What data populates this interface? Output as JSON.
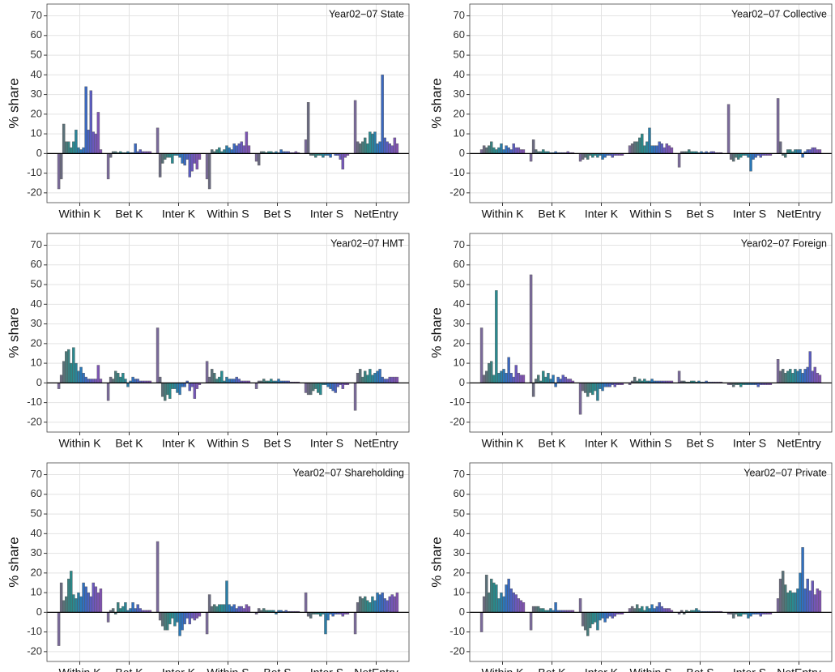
{
  "chart_data": [
    {
      "type": "bar",
      "annotation": "Year02−07 State",
      "ylabel": "% share",
      "categories": [
        "Within K",
        "Bet K",
        "Inter K",
        "Within S",
        "Bet S",
        "Inter S",
        "NetEntry"
      ],
      "values": [
        [
          -18,
          -13,
          15,
          6,
          6,
          3,
          6,
          12,
          3,
          2,
          3,
          34,
          12,
          32,
          11,
          10,
          21,
          2
        ],
        [
          -13,
          -2,
          1,
          1,
          0.5,
          1,
          0.5,
          0.5,
          1,
          0.5,
          0.5,
          5,
          1,
          2,
          1,
          1,
          1,
          1
        ],
        [
          13,
          -12,
          -5,
          -3,
          -2,
          -2,
          -5,
          -1,
          -1,
          -2,
          -5,
          -6,
          -3,
          -12,
          -9,
          -5,
          -8,
          -3
        ],
        [
          -13,
          -18,
          2,
          1,
          2,
          3,
          1,
          2,
          4,
          3,
          2,
          5,
          4,
          5,
          6,
          4,
          11,
          4
        ],
        [
          -4,
          -6,
          1,
          1,
          0.5,
          1,
          1,
          0.5,
          1,
          0.5,
          2,
          1,
          1,
          1,
          0.5,
          0.5,
          1,
          0.5
        ],
        [
          7,
          26,
          -1,
          -1,
          -2,
          -1,
          -1,
          -2,
          -1,
          -1,
          -2,
          0,
          -1,
          -1,
          -3,
          -8,
          -2,
          -1
        ],
        [
          27,
          6,
          5,
          6,
          8,
          5,
          11,
          10,
          11,
          5,
          6,
          40,
          8,
          6,
          5,
          4,
          8,
          5
        ]
      ],
      "colors": [
        "#7a6a9a",
        "#6a6a80",
        "#5a7078",
        "#4a7a7a",
        "#3a8080",
        "#2a8888",
        "#2a8a90",
        "#2a8498",
        "#2a7ea8",
        "#2a78b8",
        "#3070c0",
        "#3a68c0",
        "#4a62c0",
        "#5a5cc0",
        "#6a58bc",
        "#7456b8",
        "#7c54b4",
        "#8052b0"
      ],
      "ylim": [
        -25,
        76
      ],
      "yticks": [
        -20,
        -10,
        0,
        10,
        20,
        30,
        40,
        50,
        60,
        70
      ],
      "grid": true
    },
    {
      "type": "bar",
      "annotation": "Year02−07 Collective",
      "ylabel": "% share",
      "categories": [
        "Within K",
        "Bet K",
        "Inter K",
        "Within S",
        "Bet S",
        "Inter S",
        "NetEntry"
      ],
      "values": [
        [
          2,
          4,
          3,
          4,
          6,
          3,
          2,
          3,
          5,
          2,
          4,
          3,
          2,
          5,
          3,
          3,
          2,
          2
        ],
        [
          -4,
          7,
          2,
          1,
          1,
          2,
          1,
          1,
          0.5,
          0.5,
          1,
          0.5,
          0.5,
          0.5,
          0.5,
          1,
          0.5,
          0.5
        ],
        [
          -4,
          -3,
          -2,
          -3,
          -1,
          -2,
          -1,
          -2,
          -1,
          -3,
          -2,
          -1,
          -1,
          -2,
          -1,
          -1,
          -1,
          -1
        ],
        [
          4,
          5,
          6,
          6,
          8,
          10,
          4,
          6,
          13,
          4,
          4,
          4,
          6,
          5,
          3,
          5,
          4,
          3
        ],
        [
          -7,
          1,
          1,
          1,
          2,
          1,
          1,
          1,
          0.5,
          1,
          0.5,
          1,
          0.5,
          1,
          1,
          0.5,
          0.5,
          0.5
        ],
        [
          25,
          -3,
          -4,
          -2,
          -3,
          -2,
          -1,
          -1,
          -2,
          -9,
          -3,
          -2,
          -1,
          -2,
          -1,
          -1,
          -1,
          -1
        ],
        [
          28,
          6,
          -1,
          -2,
          2,
          2,
          1,
          2,
          2,
          2,
          -2,
          1,
          2,
          2,
          3,
          3,
          2,
          2
        ]
      ],
      "colors": [
        "#7a6a9a",
        "#6a6a80",
        "#5a7078",
        "#4a7a7a",
        "#3a8080",
        "#2a8888",
        "#2a8a90",
        "#2a8498",
        "#2a7ea8",
        "#2a78b8",
        "#3070c0",
        "#3a68c0",
        "#4a62c0",
        "#5a5cc0",
        "#6a58bc",
        "#7456b8",
        "#7c54b4",
        "#8052b0"
      ],
      "ylim": [
        -25,
        76
      ],
      "yticks": [
        -20,
        -10,
        0,
        10,
        20,
        30,
        40,
        50,
        60,
        70
      ],
      "grid": true
    },
    {
      "type": "bar",
      "annotation": "Year02−07 HMT",
      "ylabel": "% share",
      "categories": [
        "Within K",
        "Bet K",
        "Inter K",
        "Within S",
        "Bet S",
        "Inter S",
        "NetEntry"
      ],
      "values": [
        [
          -3,
          4,
          11,
          16,
          17,
          10,
          18,
          10,
          6,
          8,
          5,
          3,
          2,
          2,
          2,
          2,
          9,
          2
        ],
        [
          -9,
          3,
          2,
          6,
          5,
          3,
          5,
          2,
          -2,
          1,
          3,
          2,
          2,
          1,
          1,
          1,
          1,
          1
        ],
        [
          28,
          3,
          -7,
          -9,
          -6,
          -8,
          -3,
          -3,
          -5,
          -6,
          -2,
          -2,
          1,
          -4,
          -2,
          -8,
          -3,
          -1
        ],
        [
          11,
          3,
          7,
          5,
          2,
          3,
          6,
          1,
          3,
          2,
          2,
          2,
          3,
          2,
          1,
          1,
          1,
          1
        ],
        [
          -3,
          1,
          1,
          2,
          1,
          1,
          2,
          1,
          1,
          2,
          1,
          1,
          1,
          1,
          0.5,
          0.5,
          0.5,
          0.5
        ],
        [
          -5,
          -6,
          -6,
          -4,
          -3,
          -5,
          -6,
          -1,
          -1,
          -2,
          -3,
          -4,
          -5,
          -2,
          -1,
          -3,
          -1,
          -1
        ],
        [
          -14,
          5,
          7,
          3,
          6,
          4,
          7,
          4,
          5,
          6,
          7,
          3,
          2,
          2,
          3,
          3,
          3,
          3
        ]
      ],
      "colors": [
        "#7a6a9a",
        "#6a6a80",
        "#5a7078",
        "#4a7a7a",
        "#3a8080",
        "#2a8888",
        "#2a8a90",
        "#2a8498",
        "#2a7ea8",
        "#2a78b8",
        "#3070c0",
        "#3a68c0",
        "#4a62c0",
        "#5a5cc0",
        "#6a58bc",
        "#7456b8",
        "#7c54b4",
        "#8052b0"
      ],
      "ylim": [
        -25,
        76
      ],
      "yticks": [
        -20,
        -10,
        0,
        10,
        20,
        30,
        40,
        50,
        60,
        70
      ],
      "grid": true
    },
    {
      "type": "bar",
      "annotation": "Year02−07 Foreign",
      "ylabel": "% share",
      "categories": [
        "Within K",
        "Bet K",
        "Inter K",
        "Within S",
        "Bet S",
        "Inter S",
        "NetEntry"
      ],
      "values": [
        [
          28,
          4,
          6,
          10,
          11,
          4,
          47,
          5,
          6,
          7,
          5,
          13,
          5,
          3,
          9,
          5,
          4,
          4
        ],
        [
          55,
          -7,
          2,
          4,
          1,
          6,
          3,
          5,
          2,
          4,
          -2,
          3,
          2,
          4,
          3,
          2,
          2,
          1
        ],
        [
          -16,
          -4,
          -5,
          -7,
          -5,
          -6,
          -4,
          -9,
          -3,
          -4,
          -2,
          -2,
          -2,
          -1,
          -2,
          -1,
          -1,
          -1
        ],
        [
          -1,
          1,
          3,
          1,
          2,
          1,
          2,
          1,
          1,
          2,
          1,
          1,
          1,
          1,
          1,
          1,
          1,
          1
        ],
        [
          6,
          1,
          1,
          0.5,
          0.5,
          1,
          1,
          0.5,
          1,
          0.5,
          0.5,
          1,
          0.5,
          0.5,
          0.5,
          0.5,
          0.5,
          0.5
        ],
        [
          -1,
          -1,
          -2,
          -1,
          -1,
          -2,
          -1,
          -1,
          -1,
          -1,
          -1,
          -1,
          -2,
          -1,
          -1,
          -1,
          -1,
          -1
        ],
        [
          12,
          6,
          7,
          5,
          6,
          7,
          5,
          7,
          6,
          7,
          5,
          7,
          8,
          16,
          6,
          8,
          5,
          4
        ]
      ],
      "colors": [
        "#7a6a9a",
        "#6a6a80",
        "#5a7078",
        "#4a7a7a",
        "#3a8080",
        "#2a8888",
        "#2a8a90",
        "#2a8498",
        "#2a7ea8",
        "#2a78b8",
        "#3070c0",
        "#3a68c0",
        "#4a62c0",
        "#5a5cc0",
        "#6a58bc",
        "#7456b8",
        "#7c54b4",
        "#8052b0"
      ],
      "ylim": [
        -25,
        76
      ],
      "yticks": [
        -20,
        -10,
        0,
        10,
        20,
        30,
        40,
        50,
        60,
        70
      ],
      "grid": true
    },
    {
      "type": "bar",
      "annotation": "Year02−07 Shareholding",
      "ylabel": "% share",
      "categories": [
        "Within K",
        "Bet K",
        "Inter K",
        "Within S",
        "Bet S",
        "Inter S",
        "NetEntry"
      ],
      "values": [
        [
          -17,
          15,
          6,
          8,
          17,
          21,
          9,
          7,
          10,
          8,
          15,
          13,
          10,
          8,
          15,
          13,
          10,
          12
        ],
        [
          -5,
          1,
          2,
          -1,
          5,
          2,
          3,
          5,
          1,
          2,
          5,
          2,
          4,
          2,
          1,
          1,
          1,
          1
        ],
        [
          36,
          -4,
          -7,
          -9,
          -9,
          -6,
          -3,
          -7,
          -5,
          -12,
          -9,
          -6,
          -3,
          -6,
          -3,
          -4,
          -3,
          -2
        ],
        [
          -11,
          9,
          3,
          4,
          3,
          4,
          4,
          4,
          16,
          4,
          3,
          4,
          2,
          3,
          3,
          2,
          4,
          3
        ],
        [
          -1,
          2,
          1,
          2,
          1,
          1,
          1,
          1,
          -1,
          1,
          1,
          0.5,
          1,
          0.5,
          0.5,
          0.5,
          0.5,
          0.5
        ],
        [
          10,
          -2,
          -3,
          -1,
          -1,
          -1,
          -2,
          -1,
          -11,
          -4,
          -1,
          -2,
          -1,
          -1,
          -1,
          -2,
          -1,
          -1
        ],
        [
          -11,
          5,
          8,
          7,
          8,
          6,
          5,
          8,
          6,
          10,
          9,
          10,
          7,
          6,
          8,
          9,
          8,
          10
        ]
      ],
      "colors": [
        "#7a6a9a",
        "#6a6a80",
        "#5a7078",
        "#4a7a7a",
        "#3a8080",
        "#2a8888",
        "#2a8a90",
        "#2a8498",
        "#2a7ea8",
        "#2a78b8",
        "#3070c0",
        "#3a68c0",
        "#4a62c0",
        "#5a5cc0",
        "#6a58bc",
        "#7456b8",
        "#7c54b4",
        "#8052b0"
      ],
      "ylim": [
        -25,
        76
      ],
      "yticks": [
        -20,
        -10,
        0,
        10,
        20,
        30,
        40,
        50,
        60,
        70
      ],
      "grid": true
    },
    {
      "type": "bar",
      "annotation": "Year02−07 Private",
      "ylabel": "% share",
      "categories": [
        "Within K",
        "Bet K",
        "Inter K",
        "Within S",
        "Bet S",
        "Inter S",
        "NetEntry"
      ],
      "values": [
        [
          -10,
          8,
          19,
          10,
          17,
          15,
          14,
          7,
          10,
          8,
          14,
          17,
          12,
          10,
          9,
          7,
          6,
          5
        ],
        [
          -9,
          3,
          3,
          3,
          2,
          2,
          1,
          1,
          2,
          1,
          5,
          1,
          1,
          1,
          1,
          1,
          1,
          1
        ],
        [
          7,
          -7,
          -9,
          -12,
          -8,
          -6,
          -5,
          -9,
          -4,
          -3,
          -5,
          -3,
          -2,
          -3,
          -2,
          -1,
          -1,
          -1
        ],
        [
          2,
          3,
          2,
          4,
          2,
          3,
          1,
          3,
          2,
          4,
          2,
          3,
          5,
          3,
          2,
          2,
          2,
          1
        ],
        [
          -1,
          1,
          -1,
          1,
          0.5,
          1,
          1,
          2,
          1,
          0.5,
          0.5,
          0.5,
          0.5,
          0.5,
          0.5,
          0.5,
          0.5,
          0.5
        ],
        [
          -1,
          -1,
          -3,
          -1,
          -2,
          -2,
          -1,
          -1,
          -3,
          -2,
          -1,
          -1,
          -1,
          -2,
          -1,
          -1,
          -1,
          -1
        ],
        [
          7,
          17,
          21,
          14,
          10,
          11,
          10,
          10,
          12,
          20,
          33,
          12,
          17,
          11,
          16,
          9,
          12,
          11
        ]
      ],
      "colors": [
        "#7a6a9a",
        "#6a6a80",
        "#5a7078",
        "#4a7a7a",
        "#3a8080",
        "#2a8888",
        "#2a8a90",
        "#2a8498",
        "#2a7ea8",
        "#2a78b8",
        "#3070c0",
        "#3a68c0",
        "#4a62c0",
        "#5a5cc0",
        "#6a58bc",
        "#7456b8",
        "#7c54b4",
        "#8052b0"
      ],
      "ylim": [
        -25,
        76
      ],
      "yticks": [
        -20,
        -10,
        0,
        10,
        20,
        30,
        40,
        50,
        60,
        70
      ],
      "grid": true
    }
  ]
}
